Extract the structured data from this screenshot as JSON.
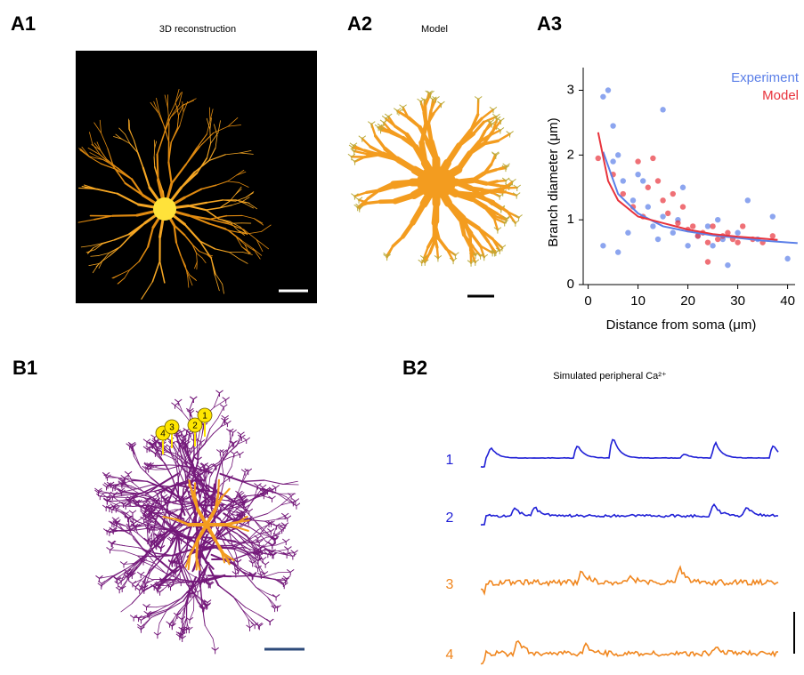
{
  "panels": {
    "a1": {
      "label": "A1",
      "title": "3D reconstruction"
    },
    "a2": {
      "label": "A2",
      "title": "Model"
    },
    "a3": {
      "label": "A3"
    },
    "b1": {
      "label": "B1",
      "markers": [
        "1",
        "2",
        "3",
        "4"
      ]
    },
    "b2": {
      "label": "B2",
      "title": "Simulated peripheral Ca²⁺",
      "traces": [
        {
          "label": "1",
          "color": "#1f1fd6"
        },
        {
          "label": "2",
          "color": "#1f1fd6"
        },
        {
          "label": "3",
          "color": "#f0861e"
        },
        {
          "label": "4",
          "color": "#f0861e"
        }
      ]
    }
  },
  "chart_data": {
    "type": "scatter",
    "xlabel": "Distance from soma (μm)",
    "ylabel": "Branch diameter (μm)",
    "xlim": [
      -1,
      41.5
    ],
    "ylim": [
      0,
      3.35
    ],
    "xticks": [
      0,
      10,
      20,
      30,
      40
    ],
    "yticks": [
      0,
      1,
      2,
      3
    ],
    "legend": "upper right",
    "series": [
      {
        "name": "Experiment",
        "color": "#5b7fe8",
        "x": [
          3,
          4,
          5,
          15,
          3,
          5,
          6,
          7,
          8,
          9,
          10,
          11,
          12,
          13,
          14,
          15,
          17,
          18,
          20,
          22,
          24,
          25,
          27,
          28,
          30,
          32,
          34,
          37,
          40,
          6,
          19,
          26
        ],
        "values": [
          2.9,
          3.0,
          2.45,
          2.7,
          0.6,
          1.9,
          2.0,
          1.6,
          0.8,
          1.3,
          1.7,
          1.6,
          1.2,
          0.9,
          0.7,
          1.05,
          0.8,
          1.0,
          0.6,
          0.75,
          0.9,
          0.6,
          0.7,
          0.3,
          0.8,
          1.3,
          0.7,
          1.05,
          0.4,
          0.5,
          1.5,
          1.0
        ],
        "fit": {
          "x": [
            3,
            6,
            10,
            15,
            20,
            25,
            30,
            35,
            42
          ],
          "values": [
            2.05,
            1.4,
            1.1,
            0.9,
            0.82,
            0.76,
            0.72,
            0.68,
            0.64
          ]
        }
      },
      {
        "name": "Model",
        "color": "#e8333c",
        "x": [
          2,
          5,
          7,
          9,
          10,
          12,
          13,
          14,
          15,
          16,
          18,
          19,
          20,
          21,
          22,
          23,
          24,
          25,
          26,
          27,
          28,
          29,
          30,
          31,
          33,
          35,
          37,
          17,
          11,
          24
        ],
        "values": [
          1.95,
          1.7,
          1.4,
          1.2,
          1.9,
          1.5,
          1.95,
          1.6,
          1.3,
          1.1,
          0.95,
          1.2,
          0.85,
          0.9,
          0.75,
          0.8,
          0.65,
          0.9,
          0.7,
          0.75,
          0.8,
          0.7,
          0.65,
          0.9,
          0.7,
          0.65,
          0.75,
          1.4,
          1.05,
          0.35
        ],
        "fit": {
          "x": [
            2,
            4,
            6,
            10,
            15,
            20,
            25,
            30,
            35,
            38
          ],
          "values": [
            2.35,
            1.6,
            1.3,
            1.05,
            0.95,
            0.85,
            0.78,
            0.74,
            0.71,
            0.69
          ]
        }
      }
    ]
  }
}
